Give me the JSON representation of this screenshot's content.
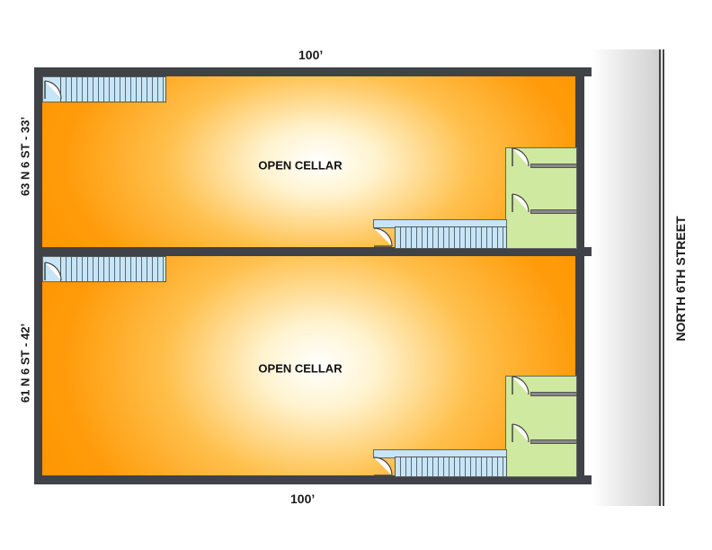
{
  "dimensions": {
    "top": "100’",
    "bottom": "100’"
  },
  "street": {
    "label": "NORTH 6TH STREET"
  },
  "units": [
    {
      "side_label": "63 N 6 ST - 33’",
      "room_label": "OPEN CELLAR"
    },
    {
      "side_label": "61 N 6 ST - 42’",
      "room_label": "OPEN CELLAR"
    }
  ],
  "colors": {
    "wall": "#3f4246",
    "cellar_edge": "#ff9500",
    "cellar_center": "#ffffff",
    "stair": "#c7e5f6",
    "utility_room": "#cfe9a0"
  }
}
